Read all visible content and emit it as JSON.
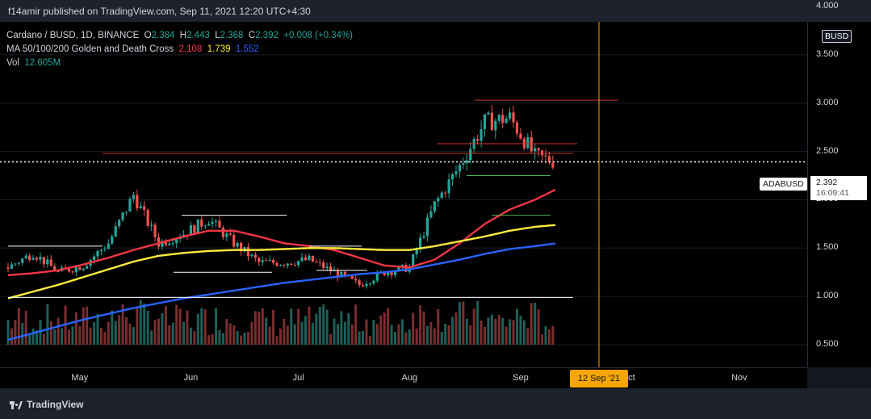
{
  "header": {
    "published": "f14amir published on TradingView.com, Sep 11, 2021 12:20 UTC+4:30"
  },
  "legend": {
    "symbol": "Cardano / BUSD, 1D, BINANCE",
    "open_k": "O",
    "open": "2.384",
    "high_k": "H",
    "high": "2.443",
    "low_k": "L",
    "low": "2.368",
    "close_k": "C",
    "close": "2.392",
    "change": "+0.008 (+0.34%)",
    "ma_label": "MA 50/100/200 Golden and Death Cross",
    "ma50": "2.108",
    "ma100": "1.739",
    "ma200": "1.552",
    "vol_label": "Vol",
    "vol": "12.605M"
  },
  "axis": {
    "currency": "BUSD",
    "y_ticks": [
      "4.000",
      "3.500",
      "3.000",
      "2.500",
      "2.000",
      "1.500",
      "1.000",
      "0.500"
    ],
    "x_ticks": [
      "May",
      "Jun",
      "Jul",
      "Aug",
      "Sep",
      "Oct",
      "Nov"
    ]
  },
  "price_label": {
    "symbol": "ADABUSD",
    "price": "2.392",
    "countdown": "16:09:41"
  },
  "date_label": "12 Sep '21",
  "footer": {
    "brand": "TradingView"
  },
  "colors": {
    "up": "#26a69a",
    "down": "#ef5350",
    "ma50": "#f23645",
    "ma100": "#ffeb3b",
    "ma200": "#2962ff",
    "cursor": "#f7a600"
  },
  "chart_data": {
    "type": "candlestick",
    "symbol": "ADABUSD",
    "ylim": [
      0.5,
      4.0
    ],
    "x": [
      "2021-04-11",
      "2021-04-18",
      "2021-04-25",
      "2021-05-02",
      "2021-05-09",
      "2021-05-16",
      "2021-05-23",
      "2021-05-30",
      "2021-06-06",
      "2021-06-13",
      "2021-06-20",
      "2021-06-27",
      "2021-07-04",
      "2021-07-11",
      "2021-07-18",
      "2021-07-25",
      "2021-08-01",
      "2021-08-08",
      "2021-08-15",
      "2021-08-22",
      "2021-08-29",
      "2021-09-05",
      "2021-09-11"
    ],
    "close": [
      1.3,
      1.45,
      1.25,
      1.32,
      1.55,
      2.05,
      1.55,
      1.65,
      1.8,
      1.55,
      1.35,
      1.35,
      1.38,
      1.25,
      1.12,
      1.25,
      1.3,
      1.95,
      2.35,
      2.8,
      2.85,
      2.45,
      2.39
    ],
    "series": [
      {
        "name": "MA 50",
        "values": [
          1.22,
          1.24,
          1.27,
          1.33,
          1.4,
          1.48,
          1.55,
          1.62,
          1.68,
          1.68,
          1.62,
          1.55,
          1.52,
          1.48,
          1.4,
          1.32,
          1.3,
          1.38,
          1.55,
          1.75,
          1.9,
          2.0,
          2.11
        ]
      },
      {
        "name": "MA 100",
        "values": [
          0.98,
          1.05,
          1.12,
          1.2,
          1.28,
          1.36,
          1.42,
          1.45,
          1.47,
          1.48,
          1.48,
          1.49,
          1.5,
          1.5,
          1.49,
          1.48,
          1.48,
          1.52,
          1.57,
          1.62,
          1.68,
          1.72,
          1.74
        ]
      },
      {
        "name": "MA 200",
        "values": [
          0.55,
          0.62,
          0.69,
          0.76,
          0.82,
          0.88,
          0.93,
          0.98,
          1.02,
          1.06,
          1.1,
          1.14,
          1.17,
          1.2,
          1.23,
          1.25,
          1.28,
          1.33,
          1.38,
          1.44,
          1.49,
          1.52,
          1.55
        ]
      }
    ],
    "horizontal_levels": [
      2.48,
      2.58,
      3.03,
      2.25,
      1.84,
      1.84,
      1.52,
      1.25,
      1.52,
      1.27,
      0.99,
      2.392
    ],
    "cursor_date": "12 Sep '21"
  }
}
